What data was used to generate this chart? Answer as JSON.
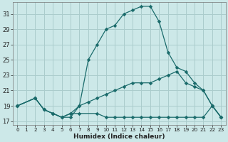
{
  "xlabel": "Humidex (Indice chaleur)",
  "background_color": "#cce8e8",
  "grid_color": "#aacccc",
  "line_color": "#1a6b6b",
  "xlim": [
    -0.5,
    23.5
  ],
  "ylim": [
    16.5,
    32.5
  ],
  "xticks": [
    0,
    1,
    2,
    3,
    4,
    5,
    6,
    7,
    8,
    9,
    10,
    11,
    12,
    13,
    14,
    15,
    16,
    17,
    18,
    19,
    20,
    21,
    22,
    23
  ],
  "yticks": [
    17,
    19,
    21,
    23,
    25,
    27,
    29,
    31
  ],
  "line1_x": [
    0,
    2,
    3,
    4,
    5,
    6,
    7,
    8,
    9,
    10,
    11,
    12,
    13,
    14,
    15,
    16,
    17,
    18,
    19,
    20,
    21,
    22,
    23
  ],
  "line1_y": [
    19,
    20,
    18.5,
    18,
    17.5,
    17.5,
    19,
    25,
    27,
    29,
    29.5,
    31,
    31.5,
    32,
    32,
    30,
    26,
    24,
    23.5,
    22,
    21,
    19,
    17.5
  ],
  "line2_x": [
    0,
    2,
    3,
    4,
    5,
    6,
    7,
    8,
    9,
    10,
    11,
    12,
    13,
    14,
    15,
    16,
    17,
    18,
    19,
    20,
    21,
    22,
    23
  ],
  "line2_y": [
    19,
    20,
    18.5,
    18,
    17.5,
    18,
    19,
    19.5,
    20,
    20.5,
    21,
    21.5,
    22,
    22,
    22,
    22.5,
    23,
    23.5,
    22,
    21.5,
    21,
    19,
    17.5
  ],
  "line3_x": [
    0,
    2,
    3,
    4,
    5,
    6,
    7,
    9,
    10,
    11,
    12,
    13,
    14,
    15,
    16,
    17,
    18,
    19,
    20,
    21,
    22,
    23
  ],
  "line3_y": [
    19,
    20,
    18.5,
    18,
    17.5,
    18,
    18,
    18,
    17.5,
    17.5,
    17.5,
    17.5,
    17.5,
    17.5,
    17.5,
    17.5,
    17.5,
    17.5,
    17.5,
    17.5,
    19,
    17.5
  ],
  "xtick_fontsize": 5.2,
  "ytick_fontsize": 6.0,
  "xlabel_fontsize": 6.5
}
